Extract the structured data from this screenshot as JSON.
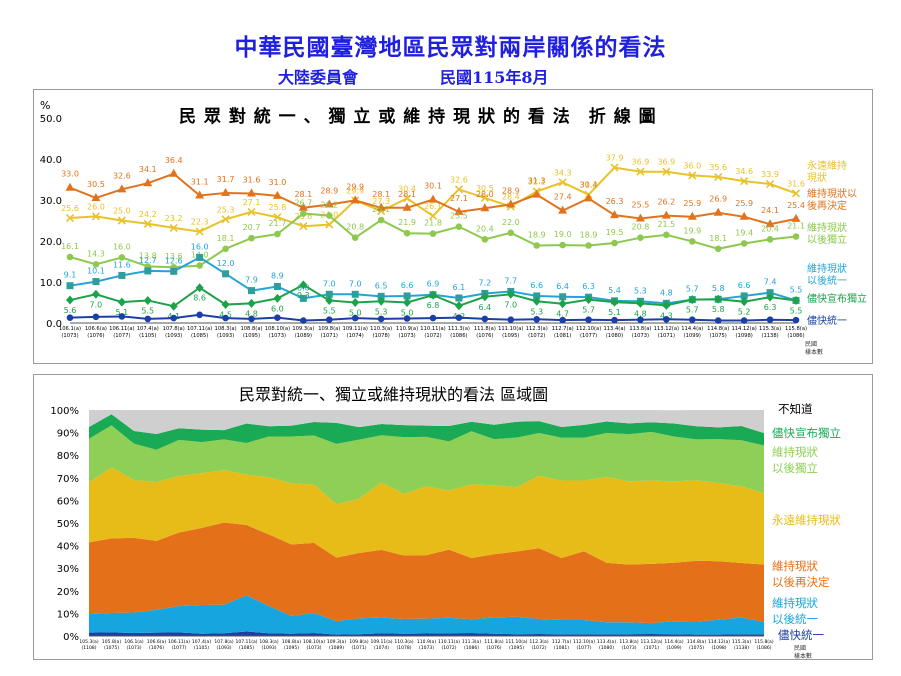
{
  "header": {
    "title": "中華民國臺灣地區民眾對兩岸關係的看法",
    "organization": "大陸委員會",
    "date": "民國115年8月"
  },
  "chart_data": [
    {
      "type": "line",
      "title": "民 眾 對 統 一 、 獨 立 或 維 持 現 狀 的 看 法　折 線 圖",
      "ylabel": "%",
      "ylim": [
        0,
        50
      ],
      "yticks": [
        "0.0",
        "10.0",
        "20.0",
        "30.0",
        "40.0",
        "50.0"
      ],
      "grid": false,
      "legend_position": "right",
      "axis_note": [
        "民國",
        "樣本數"
      ],
      "x": [
        {
          "date": "106.1(a)",
          "n": "(1073)"
        },
        {
          "date": "106.6(a)",
          "n": "(1076)"
        },
        {
          "date": "106.11(a)",
          "n": "(1077)"
        },
        {
          "date": "107.4(a)",
          "n": "(1105)"
        },
        {
          "date": "107.8(a)",
          "n": "(1093)"
        },
        {
          "date": "107.11(a)",
          "n": "(1085)"
        },
        {
          "date": "108.3(a)",
          "n": "(1093)"
        },
        {
          "date": "108.8(a)",
          "n": "(1095)"
        },
        {
          "date": "108.10(a)",
          "n": "(1073)"
        },
        {
          "date": "109.3(a)",
          "n": "(1089)"
        },
        {
          "date": "109.8(a)",
          "n": "(1071)"
        },
        {
          "date": "109.11(a)",
          "n": "(1074)"
        },
        {
          "date": "110.3(a)",
          "n": "(1078)"
        },
        {
          "date": "110.9(a)",
          "n": "(1073)"
        },
        {
          "date": "110.11(a)",
          "n": "(1072)"
        },
        {
          "date": "111.3(a)",
          "n": "(1086)"
        },
        {
          "date": "111.8(a)",
          "n": "(1076)"
        },
        {
          "date": "111.10(a)",
          "n": "(1095)"
        },
        {
          "date": "112.3(a)",
          "n": "(1072)"
        },
        {
          "date": "112.7(a)",
          "n": "(1081)"
        },
        {
          "date": "112.10(a)",
          "n": "(1077)"
        },
        {
          "date": "113.4(a)",
          "n": "(1080)"
        },
        {
          "date": "113.8(a)",
          "n": "(1073)"
        },
        {
          "date": "113.12(a)",
          "n": "(1071)"
        },
        {
          "date": "114.4(a)",
          "n": "(1099)"
        },
        {
          "date": "114.8(a)",
          "n": "(1075)"
        },
        {
          "date": "114.12(a)",
          "n": "(1098)"
        },
        {
          "date": "115.3(a)",
          "n": "(1138)"
        },
        {
          "date": "115.8(a)",
          "n": "(1086)"
        }
      ],
      "series": [
        {
          "name": "永遠維持現狀",
          "color": "#E8C22A",
          "marker": "x",
          "values": [
            25.6,
            26.0,
            25.0,
            24.2,
            23.2,
            22.3,
            25.3,
            27.1,
            25.8,
            23.6,
            24.0,
            29.9,
            27.3,
            30.4,
            26.1,
            32.6,
            30.5,
            28.4,
            32.1,
            34.3,
            31.3,
            37.9,
            36.9,
            36.9,
            36.0,
            35.6,
            34.6,
            33.9,
            31.6
          ]
        },
        {
          "name": "維持現狀以後再決定",
          "color": "#E2731D",
          "marker": "triangle",
          "values": [
            33.0,
            30.5,
            32.6,
            34.1,
            36.4,
            31.1,
            31.7,
            31.6,
            31.0,
            28.1,
            28.9,
            29.9,
            28.1,
            28.1,
            30.1,
            27.1,
            28.0,
            28.9,
            31.3,
            27.4,
            30.4,
            26.3,
            25.5,
            26.2,
            25.9,
            26.9,
            25.9,
            24.1,
            25.4
          ]
        },
        {
          "name": "維持現狀以後獨立",
          "color": "#8DC94F",
          "marker": "circle",
          "values": [
            16.1,
            14.3,
            16.0,
            13.8,
            13.6,
            14.0,
            18.1,
            20.7,
            21.7,
            26.7,
            26.2,
            20.8,
            25.1,
            21.9,
            21.8,
            23.5,
            20.4,
            22.0,
            18.9,
            19.0,
            18.9,
            19.5,
            20.8,
            21.5,
            19.9,
            18.1,
            19.4,
            20.4,
            21.1
          ]
        },
        {
          "name": "維持現狀以後統一",
          "color": "#25A3D8",
          "marker": "square",
          "values": [
            9.1,
            10.1,
            11.6,
            12.7,
            12.6,
            16.0,
            12.0,
            7.9,
            8.9,
            6.0,
            7.0,
            7.0,
            6.5,
            6.6,
            6.9,
            6.1,
            7.2,
            7.7,
            6.6,
            6.4,
            6.3,
            5.4,
            5.3,
            4.8,
            5.7,
            5.8,
            6.6,
            7.4,
            5.5
          ]
        },
        {
          "name": "儘快宣布獨立",
          "color": "#1CA34A",
          "marker": "diamond",
          "values": [
            5.6,
            7.0,
            5.1,
            5.5,
            4.1,
            8.6,
            4.5,
            4.8,
            6.0,
            9.3,
            5.5,
            5.0,
            5.3,
            5.0,
            6.8,
            4.2,
            6.4,
            7.0,
            5.3,
            4.7,
            5.7,
            5.1,
            4.8,
            4.3,
            5.7,
            5.8,
            5.2,
            6.3,
            5.5
          ]
        },
        {
          "name": "儘快統一",
          "color": "#1B3FA6",
          "marker": "circle",
          "values": [
            1.3,
            1.5,
            1.6,
            1.0,
            1.2,
            2.0,
            1.2,
            1.0,
            1.3,
            0.6,
            0.8,
            1.2,
            1.0,
            1.1,
            1.2,
            1.3,
            1.0,
            0.8,
            0.9,
            0.7,
            0.8,
            0.7,
            0.8,
            0.9,
            0.8,
            0.6,
            0.6,
            0.8,
            0.7
          ]
        }
      ],
      "legend": [
        {
          "text": "永遠維持",
          "text2": "現狀",
          "color": "#E8C22A"
        },
        {
          "text": "維持現狀以",
          "text2": "後再決定",
          "color": "#E2731D"
        },
        {
          "text": "維持現狀",
          "text2": "以後獨立",
          "color": "#8DC94F"
        },
        {
          "text": "維持現狀",
          "text2": "以後統一",
          "color": "#25A3D8"
        },
        {
          "text": "儘快宣布獨立",
          "text2": "",
          "color": "#1CA34A"
        },
        {
          "text": "儘快統一",
          "text2": "",
          "color": "#1B3FA6"
        }
      ]
    },
    {
      "type": "area",
      "stacked": true,
      "title": "民眾對統一、獨立或維持現狀的看法 區域圖",
      "ylim": [
        0,
        100
      ],
      "yticks": [
        "0%",
        "10%",
        "20%",
        "30%",
        "40%",
        "50%",
        "60%",
        "70%",
        "80%",
        "90%",
        "100%"
      ],
      "legend_position": "right",
      "axis_note": [
        "民國",
        "樣本數"
      ],
      "x": [
        {
          "date": "105.3(a)",
          "n": "(1108)"
        },
        {
          "date": "105.8(a)",
          "n": "(1075)"
        },
        {
          "date": "106.1(a)",
          "n": "(1073)"
        },
        {
          "date": "106.6(a)",
          "n": "(1076)"
        },
        {
          "date": "106.11(a)",
          "n": "(1077)"
        },
        {
          "date": "107.4(a)",
          "n": "(1105)"
        },
        {
          "date": "107.8(a)",
          "n": "(1093)"
        },
        {
          "date": "107.11(a)",
          "n": "(1085)"
        },
        {
          "date": "108.3(a)",
          "n": "(1093)"
        },
        {
          "date": "108.8(a)",
          "n": "(1095)"
        },
        {
          "date": "108.10(a)",
          "n": "(1073)"
        },
        {
          "date": "109.3(a)",
          "n": "(1089)"
        },
        {
          "date": "109.8(a)",
          "n": "(1071)"
        },
        {
          "date": "109.11(a)",
          "n": "(1074)"
        },
        {
          "date": "110.3(a)",
          "n": "(1078)"
        },
        {
          "date": "110.9(a)",
          "n": "(1073)"
        },
        {
          "date": "110.11(a)",
          "n": "(1072)"
        },
        {
          "date": "111.3(a)",
          "n": "(1086)"
        },
        {
          "date": "111.8(a)",
          "n": "(1076)"
        },
        {
          "date": "111.10(a)",
          "n": "(1095)"
        },
        {
          "date": "112.3(a)",
          "n": "(1072)"
        },
        {
          "date": "112.7(a)",
          "n": "(1081)"
        },
        {
          "date": "112.10(a)",
          "n": "(1077)"
        },
        {
          "date": "113.4(a)",
          "n": "(1080)"
        },
        {
          "date": "113.8(a)",
          "n": "(1073)"
        },
        {
          "date": "113.12(a)",
          "n": "(1071)"
        },
        {
          "date": "114.4(a)",
          "n": "(1099)"
        },
        {
          "date": "114.8(a)",
          "n": "(1075)"
        },
        {
          "date": "114.12(a)",
          "n": "(1098)"
        },
        {
          "date": "115.3(a)",
          "n": "(1138)"
        },
        {
          "date": "115.8(a)",
          "n": "(1086)"
        }
      ],
      "series": [
        {
          "name": "儘快統一",
          "color": "#1B3FA6",
          "values": [
            1.5,
            1.6,
            1.3,
            1.5,
            1.6,
            1.0,
            1.2,
            2.0,
            1.2,
            1.0,
            1.3,
            0.6,
            0.8,
            1.2,
            1.0,
            1.1,
            1.2,
            1.3,
            1.0,
            0.8,
            0.9,
            0.7,
            0.8,
            0.7,
            0.8,
            0.9,
            0.8,
            0.6,
            0.6,
            0.8,
            0.7
          ]
        },
        {
          "name": "維持現狀以後統一",
          "color": "#16A5DF",
          "values": [
            8.2,
            8.6,
            9.1,
            10.1,
            11.6,
            12.7,
            12.6,
            16.0,
            12.0,
            7.9,
            8.9,
            6.0,
            7.0,
            7.0,
            6.5,
            6.6,
            6.9,
            6.1,
            7.2,
            7.7,
            6.6,
            6.4,
            6.3,
            5.4,
            5.3,
            4.8,
            5.7,
            5.8,
            6.6,
            7.4,
            5.5
          ]
        },
        {
          "name": "維持現狀以後再決定",
          "color": "#E5701A",
          "values": [
            31.7,
            33.0,
            33.0,
            30.5,
            32.6,
            34.1,
            36.4,
            31.1,
            31.7,
            31.6,
            31.0,
            28.1,
            28.9,
            29.9,
            28.1,
            28.1,
            30.1,
            27.1,
            28.0,
            28.9,
            31.3,
            27.4,
            30.4,
            26.3,
            25.5,
            26.2,
            25.9,
            26.9,
            25.9,
            24.1,
            25.4
          ]
        },
        {
          "name": "永遠維持現狀",
          "color": "#E8BC18",
          "values": [
            26.6,
            31.4,
            25.6,
            26.0,
            25.0,
            24.2,
            23.2,
            22.3,
            25.3,
            27.1,
            25.8,
            23.6,
            24.0,
            29.9,
            27.3,
            30.4,
            26.1,
            32.6,
            30.5,
            28.4,
            32.1,
            34.3,
            31.3,
            37.9,
            36.9,
            36.9,
            36.0,
            35.6,
            34.6,
            33.9,
            31.6
          ]
        },
        {
          "name": "維持現狀以後獨立",
          "color": "#8ECF55",
          "values": [
            19.3,
            18.6,
            16.1,
            14.3,
            16.0,
            13.8,
            13.6,
            14.0,
            18.1,
            20.7,
            21.7,
            26.7,
            26.2,
            20.8,
            25.1,
            21.9,
            21.8,
            23.5,
            20.4,
            22.0,
            18.9,
            19.0,
            18.9,
            19.5,
            20.8,
            21.5,
            19.9,
            18.1,
            19.4,
            20.4,
            21.1
          ]
        },
        {
          "name": "儘快宣布獨立",
          "color": "#1AAA56",
          "values": [
            5.2,
            4.9,
            5.6,
            7.0,
            5.1,
            5.5,
            4.1,
            8.6,
            4.5,
            4.8,
            6.0,
            9.3,
            5.5,
            5.0,
            5.3,
            5.0,
            6.8,
            4.2,
            6.4,
            7.0,
            5.3,
            4.7,
            5.7,
            5.1,
            4.8,
            4.3,
            5.7,
            5.8,
            5.2,
            6.3,
            5.5
          ]
        },
        {
          "name": "不知道",
          "color": "#CFCFCF",
          "values": [
            7.5,
            1.9,
            9.3,
            10.6,
            8.1,
            8.7,
            8.9,
            6.0,
            7.2,
            6.9,
            5.3,
            5.7,
            7.6,
            6.2,
            6.7,
            6.9,
            7.1,
            5.2,
            6.5,
            5.2,
            4.9,
            7.5,
            6.6,
            5.1,
            5.9,
            5.4,
            5.9,
            7.2,
            7.7,
            7.1,
            10.2
          ]
        }
      ],
      "legend": [
        {
          "text": "不知道",
          "text2": "",
          "color": "#000000"
        },
        {
          "text": "儘快宣布獨立",
          "text2": "",
          "color": "#1AAA56"
        },
        {
          "text": "維持現狀",
          "text2": "以後獨立",
          "color": "#8ECF55"
        },
        {
          "text": "永遠維持現狀",
          "text2": "",
          "color": "#E8BC18"
        },
        {
          "text": "維持現狀",
          "text2": "以後再決定",
          "color": "#E5701A"
        },
        {
          "text": "維持現狀",
          "text2": "以後統一",
          "color": "#16A5DF"
        },
        {
          "text": "儘快統一",
          "text2": "",
          "color": "#1B3FA6"
        }
      ]
    }
  ]
}
